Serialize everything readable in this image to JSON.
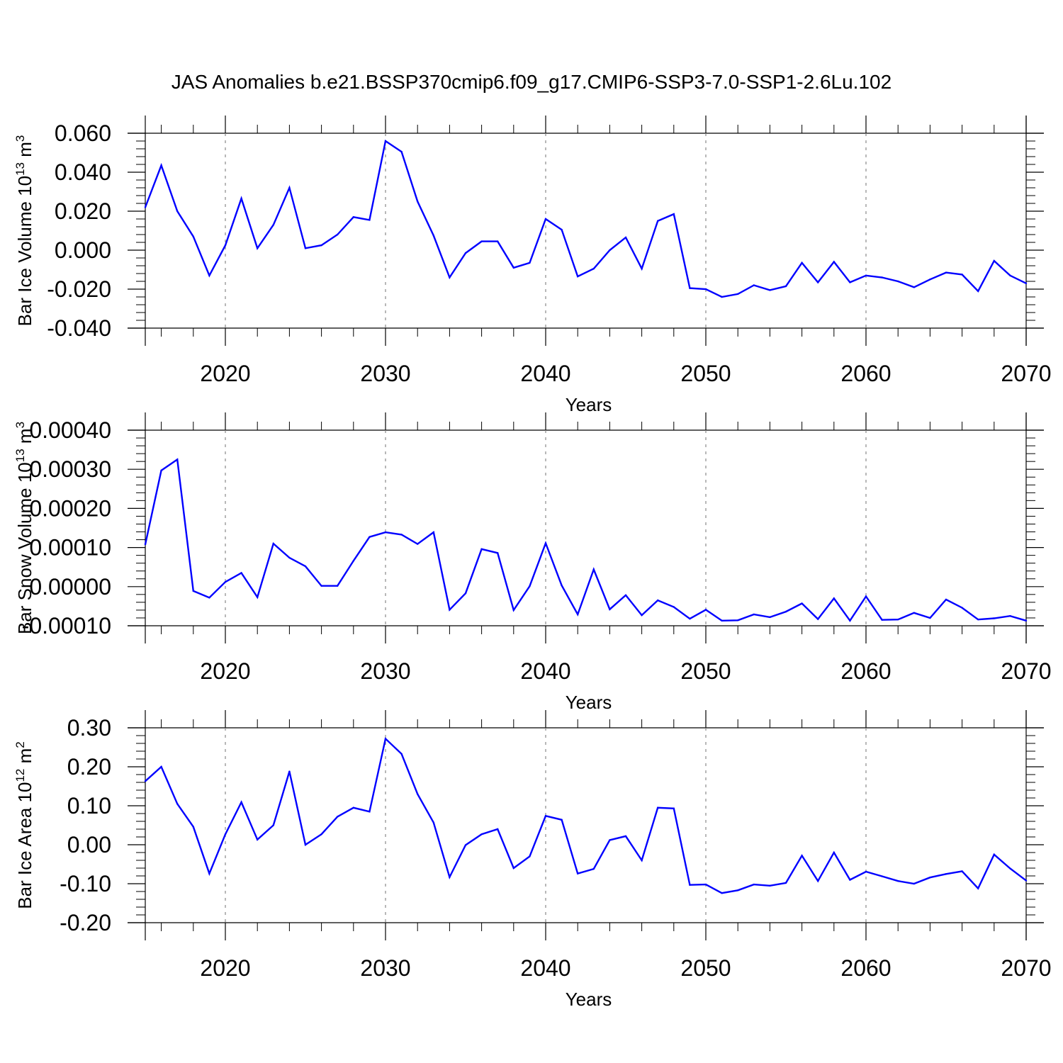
{
  "figure_title": "JAS Anomalies b.e21.BSSP370cmip6.f09_g17.CMIP6-SSP3-7.0-SSP1-2.6Lu.102",
  "line_color": "#0000ff",
  "chart_data": [
    {
      "type": "line",
      "series_name": "Bar Ice Volume",
      "ylabel": "Bar Ice Volume 10",
      "ylabel_exp": "13",
      "ylabel_unit": " m",
      "ylabel_unit_exp": "3",
      "xlabel": "Years",
      "xlim": [
        2015,
        2070
      ],
      "ylim": [
        -0.04,
        0.06
      ],
      "yticks": [
        -0.04,
        -0.02,
        0.0,
        0.02,
        0.04,
        0.06
      ],
      "ytick_labels": [
        "-0.040",
        "-0.020",
        "0.000",
        "0.020",
        "0.040",
        "0.060"
      ],
      "xticks": [
        2020,
        2030,
        2040,
        2050,
        2060,
        2070
      ],
      "xtick_labels": [
        "2020",
        "2030",
        "2040",
        "2050",
        "2060",
        "2070"
      ],
      "x": [
        2015,
        2016,
        2017,
        2018,
        2019,
        2020,
        2021,
        2022,
        2023,
        2024,
        2025,
        2026,
        2027,
        2028,
        2029,
        2030,
        2031,
        2032,
        2033,
        2034,
        2035,
        2036,
        2037,
        2038,
        2039,
        2040,
        2041,
        2042,
        2043,
        2044,
        2045,
        2046,
        2047,
        2048,
        2049,
        2050,
        2051,
        2052,
        2053,
        2054,
        2055,
        2056,
        2057,
        2058,
        2059,
        2060,
        2061,
        2062,
        2063,
        2064,
        2065,
        2066,
        2067,
        2068,
        2069,
        2070
      ],
      "y": [
        0.022,
        0.0435,
        0.02,
        0.007,
        -0.013,
        0.0025,
        0.0265,
        0.001,
        0.013,
        0.032,
        0.001,
        0.0025,
        0.008,
        0.017,
        0.0155,
        0.056,
        0.0505,
        0.025,
        0.0075,
        -0.014,
        -0.0015,
        0.0045,
        0.0045,
        -0.009,
        -0.0065,
        0.016,
        0.0105,
        -0.0135,
        -0.0095,
        0.0,
        0.0065,
        -0.0095,
        0.015,
        0.0185,
        -0.0195,
        -0.02,
        -0.024,
        -0.0225,
        -0.018,
        -0.0205,
        -0.0185,
        -0.0065,
        -0.0165,
        -0.006,
        -0.0165,
        -0.013,
        -0.014,
        -0.016,
        -0.019,
        -0.015,
        -0.0115,
        -0.0125,
        -0.021,
        -0.0055,
        -0.013,
        -0.017
      ]
    },
    {
      "type": "line",
      "series_name": "Bar Snow Volume",
      "ylabel": "Bar Snow Volume 10",
      "ylabel_exp": "13",
      "ylabel_unit": " m",
      "ylabel_unit_exp": "3",
      "xlabel": "Years",
      "xlim": [
        2015,
        2070
      ],
      "ylim": [
        -0.0001,
        0.0004
      ],
      "yticks": [
        -0.0001,
        0.0,
        0.0001,
        0.0002,
        0.0003,
        0.0004
      ],
      "ytick_labels": [
        "-0.00010",
        "0.00000",
        "0.00010",
        "0.00020",
        "0.00030",
        "0.00040"
      ],
      "xticks": [
        2020,
        2030,
        2040,
        2050,
        2060,
        2070
      ],
      "xtick_labels": [
        "2020",
        "2030",
        "2040",
        "2050",
        "2060",
        "2070"
      ],
      "x": [
        2015,
        2016,
        2017,
        2018,
        2019,
        2020,
        2021,
        2022,
        2023,
        2024,
        2025,
        2026,
        2027,
        2028,
        2029,
        2030,
        2031,
        2032,
        2033,
        2034,
        2035,
        2036,
        2037,
        2038,
        2039,
        2040,
        2041,
        2042,
        2043,
        2044,
        2045,
        2046,
        2047,
        2048,
        2049,
        2050,
        2051,
        2052,
        2053,
        2054,
        2055,
        2056,
        2057,
        2058,
        2059,
        2060,
        2061,
        2062,
        2063,
        2064,
        2065,
        2066,
        2067,
        2068,
        2069,
        2070
      ],
      "y": [
        0.000108,
        0.000297,
        0.000325,
        -1.1e-05,
        -2.8e-05,
        1.2e-05,
        3.5e-05,
        -2.7e-05,
        0.00011,
        7.4e-05,
        5.2e-05,
        2e-06,
        2e-06,
        6.6e-05,
        0.000127,
        0.000139,
        0.000133,
        0.000109,
        0.000139,
        -5.9e-05,
        -1.7e-05,
        9.6e-05,
        8.6e-05,
        -6e-05,
        1e-06,
        0.000111,
        3e-06,
        -7.1e-05,
        4.4e-05,
        -5.8e-05,
        -2.2e-05,
        -7.3e-05,
        -3.5e-05,
        -5.2e-05,
        -8.2e-05,
        -5.9e-05,
        -8.7e-05,
        -8.6e-05,
        -7.1e-05,
        -7.8e-05,
        -6.4e-05,
        -4.3e-05,
        -8.3e-05,
        -3e-05,
        -8.7e-05,
        -2.5e-05,
        -8.5e-05,
        -8.4e-05,
        -6.7e-05,
        -8e-05,
        -3.3e-05,
        -5.4e-05,
        -8.4e-05,
        -8.1e-05,
        -7.5e-05,
        -8.7e-05
      ]
    },
    {
      "type": "line",
      "series_name": "Bar Ice Area",
      "ylabel": "Bar Ice Area 10",
      "ylabel_exp": "12",
      "ylabel_unit": " m",
      "ylabel_unit_exp": "2",
      "xlabel": "Years",
      "xlim": [
        2015,
        2070
      ],
      "ylim": [
        -0.2,
        0.3
      ],
      "yticks": [
        -0.2,
        -0.1,
        0.0,
        0.1,
        0.2,
        0.3
      ],
      "ytick_labels": [
        "-0.20",
        "-0.10",
        "0.00",
        "0.10",
        "0.20",
        "0.30"
      ],
      "xticks": [
        2020,
        2030,
        2040,
        2050,
        2060,
        2070
      ],
      "xtick_labels": [
        "2020",
        "2030",
        "2040",
        "2050",
        "2060",
        "2070"
      ],
      "x": [
        2015,
        2016,
        2017,
        2018,
        2019,
        2020,
        2021,
        2022,
        2023,
        2024,
        2025,
        2026,
        2027,
        2028,
        2029,
        2030,
        2031,
        2032,
        2033,
        2034,
        2035,
        2036,
        2037,
        2038,
        2039,
        2040,
        2041,
        2042,
        2043,
        2044,
        2045,
        2046,
        2047,
        2048,
        2049,
        2050,
        2051,
        2052,
        2053,
        2054,
        2055,
        2056,
        2057,
        2058,
        2059,
        2060,
        2061,
        2062,
        2063,
        2064,
        2065,
        2066,
        2067,
        2068,
        2069,
        2070
      ],
      "y": [
        0.163,
        0.2,
        0.105,
        0.046,
        -0.074,
        0.027,
        0.109,
        0.013,
        0.05,
        0.188,
        0.0,
        0.027,
        0.072,
        0.095,
        0.085,
        0.272,
        0.233,
        0.13,
        0.057,
        -0.083,
        -0.001,
        0.027,
        0.04,
        -0.06,
        -0.03,
        0.074,
        0.064,
        -0.074,
        -0.062,
        0.012,
        0.022,
        -0.04,
        0.095,
        0.093,
        -0.103,
        -0.102,
        -0.124,
        -0.117,
        -0.102,
        -0.105,
        -0.098,
        -0.028,
        -0.093,
        -0.02,
        -0.09,
        -0.069,
        -0.081,
        -0.093,
        -0.1,
        -0.084,
        -0.075,
        -0.068,
        -0.112,
        -0.025,
        -0.061,
        -0.092
      ]
    }
  ]
}
